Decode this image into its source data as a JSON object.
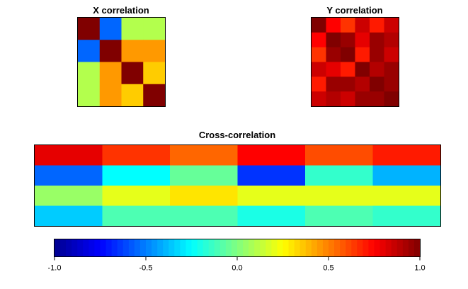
{
  "chart_data": [
    {
      "type": "heatmap",
      "title": "X correlation",
      "rows": 4,
      "cols": 4,
      "values": [
        [
          1.0,
          -0.55,
          0.1,
          0.1
        ],
        [
          -0.55,
          1.0,
          0.45,
          0.45
        ],
        [
          0.1,
          0.45,
          1.0,
          0.35
        ],
        [
          0.1,
          0.45,
          0.35,
          1.0
        ]
      ]
    },
    {
      "type": "heatmap",
      "title": "Y correlation",
      "rows": 6,
      "cols": 6,
      "values": [
        [
          1.0,
          0.75,
          0.65,
          0.85,
          0.7,
          0.85
        ],
        [
          0.75,
          1.0,
          0.95,
          0.8,
          0.95,
          0.9
        ],
        [
          0.65,
          0.95,
          1.0,
          0.7,
          0.95,
          0.85
        ],
        [
          0.85,
          0.8,
          0.7,
          1.0,
          0.9,
          0.95
        ],
        [
          0.7,
          0.95,
          0.95,
          0.9,
          1.0,
          0.95
        ],
        [
          0.85,
          0.9,
          0.85,
          0.95,
          0.95,
          1.0
        ]
      ]
    },
    {
      "type": "heatmap",
      "title": "Cross-correlation",
      "rows": 4,
      "cols": 6,
      "values": [
        [
          0.8,
          0.65,
          0.55,
          0.75,
          0.6,
          0.7
        ],
        [
          -0.55,
          -0.25,
          -0.05,
          -0.65,
          -0.15,
          -0.4
        ],
        [
          0.05,
          0.2,
          0.3,
          0.2,
          0.2,
          0.2
        ],
        [
          -0.35,
          -0.1,
          -0.1,
          -0.2,
          -0.1,
          -0.15
        ]
      ]
    },
    {
      "type": "colorbar",
      "min": -1.0,
      "max": 1.0,
      "tick_labels": [
        "-1.0",
        "-0.5",
        "0.0",
        "0.5",
        "1.0"
      ],
      "tick_values": [
        -1.0,
        -0.5,
        0.0,
        0.5,
        1.0
      ]
    }
  ]
}
